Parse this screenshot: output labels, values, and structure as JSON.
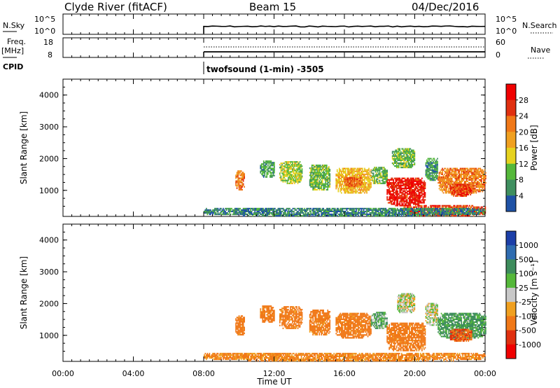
{
  "header": {
    "station": "Clyde River (fitACF)",
    "beam": "Beam 15",
    "date": "04/Dec/2016"
  },
  "noise_panel": {
    "left_label": "N.Sky",
    "left_ticks": [
      "10^5",
      "10^0"
    ],
    "right_ticks": [
      "10^5",
      "10^0"
    ],
    "right_label": "N.Search",
    "data_start": "08:00"
  },
  "freq_panel": {
    "left_label_1": "Freq.",
    "left_label_2": "[MHz]",
    "left_ticks": [
      "18",
      "8"
    ],
    "right_ticks": [
      "60",
      "0"
    ],
    "right_label": "Nave"
  },
  "cpid": {
    "label": "CPID",
    "program": "twofsound (1-min) -3505"
  },
  "x_axis": {
    "label": "Time UT",
    "ticks": [
      "00:00",
      "04:00",
      "08:00",
      "12:00",
      "16:00",
      "20:00",
      "00:00"
    ],
    "range_hours": [
      0,
      24
    ]
  },
  "power_panel": {
    "ylabel": "Slant Range [km]",
    "yticks": [
      "4000",
      "3000",
      "2000",
      "1000"
    ],
    "colorbar_label": "Power [dB]",
    "colorbar_ticks": [
      "28",
      "24",
      "20",
      "16",
      "12",
      "8",
      "4"
    ],
    "colors": [
      "#0000ee",
      "#1f52a6",
      "#3f8f5f",
      "#55b83a",
      "#e6d21e",
      "#f0a020",
      "#f07818",
      "#e03010",
      "#f00000"
    ]
  },
  "velocity_panel": {
    "ylabel": "Slant Range [km]",
    "yticks": [
      "4000",
      "3000",
      "2000",
      "1000"
    ],
    "colorbar_label": "Velocity [m s⁻¹]",
    "colorbar_ticks": [
      "1000",
      "500",
      "100",
      "25",
      "-25",
      "-100",
      "-500",
      "-1000"
    ],
    "colors": [
      "#1c3fa8",
      "#2f6cb0",
      "#3d8c5c",
      "#55b83a",
      "#c8c8c8",
      "#f0a020",
      "#f07818",
      "#e03010",
      "#f00000"
    ]
  },
  "chart_data": {
    "type": "heatmap",
    "x_unit": "hours UT",
    "y_unit": "km",
    "xlim": [
      0,
      24
    ],
    "ylim": [
      180,
      4500
    ],
    "power_regions": [
      {
        "t0": 9.8,
        "t1": 10.3,
        "r0": 1000,
        "r1": 1600,
        "dB": 22
      },
      {
        "t0": 11.2,
        "t1": 12.0,
        "r0": 1400,
        "r1": 1900,
        "dB": 10
      },
      {
        "t0": 12.3,
        "t1": 13.6,
        "r0": 1200,
        "r1": 1900,
        "dB": 14
      },
      {
        "t0": 14.0,
        "t1": 15.2,
        "r0": 1000,
        "r1": 1800,
        "dB": 12
      },
      {
        "t0": 15.5,
        "t1": 17.5,
        "r0": 900,
        "r1": 1700,
        "dB": 18
      },
      {
        "t0": 16.0,
        "t1": 17.0,
        "r0": 1100,
        "r1": 1400,
        "dB": 24
      },
      {
        "t0": 17.5,
        "t1": 18.4,
        "r0": 1200,
        "r1": 1700,
        "dB": 12
      },
      {
        "t0": 18.4,
        "t1": 20.6,
        "r0": 500,
        "r1": 1400,
        "dB": 28
      },
      {
        "t0": 18.7,
        "t1": 20.0,
        "r0": 1700,
        "r1": 2300,
        "dB": 12
      },
      {
        "t0": 20.6,
        "t1": 21.3,
        "r0": 1300,
        "r1": 2000,
        "dB": 10
      },
      {
        "t0": 21.3,
        "t1": 24.0,
        "r0": 900,
        "r1": 1700,
        "dB": 22
      },
      {
        "t0": 22.0,
        "t1": 23.2,
        "r0": 800,
        "r1": 1200,
        "dB": 26
      },
      {
        "t0": 19.3,
        "t1": 24.0,
        "r0": 180,
        "r1": 500,
        "dB": 26
      },
      {
        "t0": 8.0,
        "t1": 24.0,
        "r0": 180,
        "r1": 450,
        "dB": 8
      }
    ],
    "velocity_regions": [
      {
        "t0": 9.8,
        "t1": 10.3,
        "r0": 1000,
        "r1": 1600,
        "vel": -150
      },
      {
        "t0": 11.2,
        "t1": 12.0,
        "r0": 1400,
        "r1": 1900,
        "vel": -150
      },
      {
        "t0": 12.3,
        "t1": 13.6,
        "r0": 1200,
        "r1": 1900,
        "vel": -150
      },
      {
        "t0": 14.0,
        "t1": 15.2,
        "r0": 1000,
        "r1": 1800,
        "vel": -150
      },
      {
        "t0": 15.5,
        "t1": 17.5,
        "r0": 900,
        "r1": 1700,
        "vel": -150
      },
      {
        "t0": 17.5,
        "t1": 18.4,
        "r0": 1200,
        "r1": 1700,
        "vel": 50
      },
      {
        "t0": 18.4,
        "t1": 20.6,
        "r0": 500,
        "r1": 1400,
        "vel": -150
      },
      {
        "t0": 19.0,
        "t1": 20.0,
        "r0": 1700,
        "r1": 2300,
        "vel": 0
      },
      {
        "t0": 20.6,
        "t1": 21.3,
        "r0": 1300,
        "r1": 2000,
        "vel": 0
      },
      {
        "t0": 21.3,
        "t1": 24.0,
        "r0": 900,
        "r1": 1700,
        "vel": 80
      },
      {
        "t0": 22.0,
        "t1": 23.2,
        "r0": 800,
        "r1": 1200,
        "vel": -300
      },
      {
        "t0": 8.0,
        "t1": 24.0,
        "r0": 180,
        "r1": 450,
        "vel": -120
      }
    ]
  }
}
